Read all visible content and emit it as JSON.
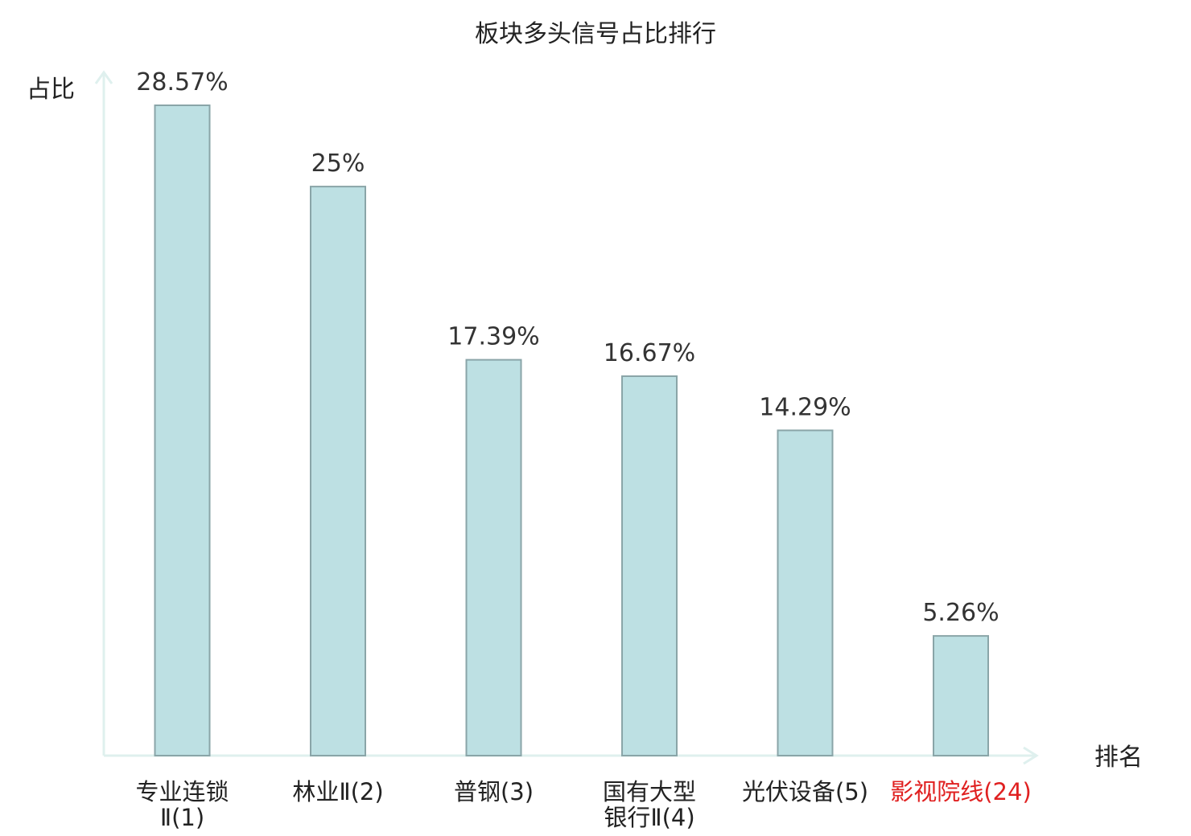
{
  "chart_data": {
    "type": "bar",
    "title": "板块多头信号占比排行",
    "xlabel": "排名",
    "ylabel": "占比",
    "categories": [
      {
        "name_lines": [
          "专业连锁",
          "Ⅱ(1)"
        ],
        "highlight": false
      },
      {
        "name_lines": [
          "林业Ⅱ(2)"
        ],
        "highlight": false
      },
      {
        "name_lines": [
          "普钢(3)"
        ],
        "highlight": false
      },
      {
        "name_lines": [
          "国有大型",
          "银行Ⅱ(4)"
        ],
        "highlight": false
      },
      {
        "name_lines": [
          "光伏设备(5)"
        ],
        "highlight": false
      },
      {
        "name_lines": [
          "影视院线(24)"
        ],
        "highlight": true
      }
    ],
    "values": [
      28.57,
      25,
      17.39,
      16.67,
      14.29,
      5.26
    ],
    "value_labels": [
      "28.57%",
      "25%",
      "17.39%",
      "16.67%",
      "14.29%",
      "5.26%"
    ],
    "ylim": [
      0,
      30
    ],
    "grid": false,
    "legend": "none",
    "colors": {
      "bar_fill": "#bde0e3",
      "bar_stroke": "#8aa5a8",
      "axis": "#dff0ee",
      "text": "#222222",
      "value_text": "#333333",
      "highlight_text": "#e02020"
    }
  }
}
